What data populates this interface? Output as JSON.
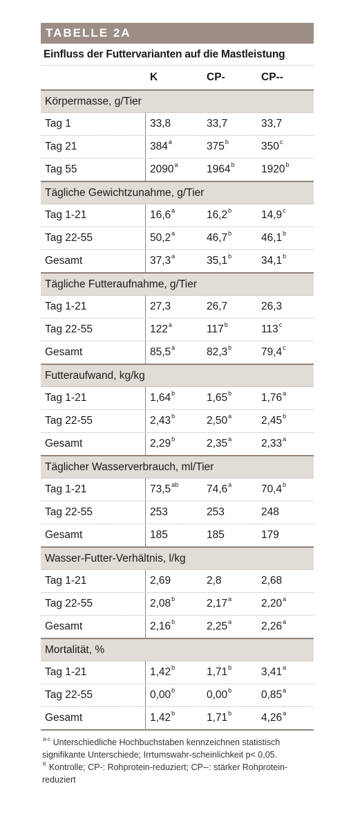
{
  "banner": "TABELLE 2A",
  "title": "Einfluss der Futtervarianten auf die Mastleistung",
  "columns": [
    "",
    "K",
    "CP-",
    "CP--"
  ],
  "sections": [
    {
      "label": "Körpermasse, g/Tier",
      "rows": [
        {
          "label": "Tag 1",
          "cells": [
            {
              "v": "33,8",
              "s": ""
            },
            {
              "v": "33,7",
              "s": ""
            },
            {
              "v": "33,7",
              "s": ""
            }
          ]
        },
        {
          "label": "Tag 21",
          "cells": [
            {
              "v": "384",
              "s": "a"
            },
            {
              "v": "375",
              "s": "b"
            },
            {
              "v": "350",
              "s": "c"
            }
          ]
        },
        {
          "label": "Tag 55",
          "cells": [
            {
              "v": "2090",
              "s": "a"
            },
            {
              "v": "1964",
              "s": "b"
            },
            {
              "v": "1920",
              "s": "b"
            }
          ]
        }
      ]
    },
    {
      "label": "Tägliche Gewichtzunahme, g/Tier",
      "rows": [
        {
          "label": "Tag 1-21",
          "cells": [
            {
              "v": "16,6",
              "s": "a"
            },
            {
              "v": "16,2",
              "s": "b"
            },
            {
              "v": "14,9",
              "s": "c"
            }
          ]
        },
        {
          "label": "Tag 22-55",
          "cells": [
            {
              "v": "50,2",
              "s": "a"
            },
            {
              "v": "46,7",
              "s": "b"
            },
            {
              "v": "46,1",
              "s": "b"
            }
          ]
        },
        {
          "label": "Gesamt",
          "cells": [
            {
              "v": "37,3",
              "s": "a"
            },
            {
              "v": "35,1",
              "s": "b"
            },
            {
              "v": "34,1",
              "s": "b"
            }
          ]
        }
      ]
    },
    {
      "label": "Tägliche Futteraufnahme, g/Tier",
      "rows": [
        {
          "label": "Tag 1-21",
          "cells": [
            {
              "v": "27,3",
              "s": ""
            },
            {
              "v": "26,7",
              "s": ""
            },
            {
              "v": "26,3",
              "s": ""
            }
          ]
        },
        {
          "label": "Tag 22-55",
          "cells": [
            {
              "v": "122",
              "s": "a"
            },
            {
              "v": "117",
              "s": "b"
            },
            {
              "v": "113",
              "s": "c"
            }
          ]
        },
        {
          "label": "Gesamt",
          "cells": [
            {
              "v": "85,5",
              "s": "a"
            },
            {
              "v": "82,3",
              "s": "b"
            },
            {
              "v": "79,4",
              "s": "c"
            }
          ]
        }
      ]
    },
    {
      "label": "Futteraufwand, kg/kg",
      "rows": [
        {
          "label": "Tag 1-21",
          "cells": [
            {
              "v": "1,64",
              "s": "b"
            },
            {
              "v": "1,65",
              "s": "b"
            },
            {
              "v": "1,76",
              "s": "a"
            }
          ]
        },
        {
          "label": "Tag 22-55",
          "cells": [
            {
              "v": "2,43",
              "s": "b"
            },
            {
              "v": "2,50",
              "s": "a"
            },
            {
              "v": "2,45",
              "s": "b"
            }
          ]
        },
        {
          "label": "Gesamt",
          "cells": [
            {
              "v": "2,29",
              "s": "b"
            },
            {
              "v": "2,35",
              "s": "a"
            },
            {
              "v": "2,33",
              "s": "a"
            }
          ]
        }
      ]
    },
    {
      "label": "Täglicher Wasserverbrauch, ml/Tier",
      "rows": [
        {
          "label": "Tag 1-21",
          "cells": [
            {
              "v": "73,5",
              "s": "ab"
            },
            {
              "v": "74,6",
              "s": "a"
            },
            {
              "v": "70,4",
              "s": "b"
            }
          ]
        },
        {
          "label": "Tag 22-55",
          "cells": [
            {
              "v": "253",
              "s": ""
            },
            {
              "v": "253",
              "s": ""
            },
            {
              "v": "248",
              "s": ""
            }
          ]
        },
        {
          "label": "Gesamt",
          "cells": [
            {
              "v": "185",
              "s": ""
            },
            {
              "v": "185",
              "s": ""
            },
            {
              "v": "179",
              "s": ""
            }
          ]
        }
      ]
    },
    {
      "label": "Wasser-Futter-Verhältnis, l/kg",
      "rows": [
        {
          "label": "Tag 1-21",
          "cells": [
            {
              "v": "2,69",
              "s": ""
            },
            {
              "v": "2,8",
              "s": ""
            },
            {
              "v": "2,68",
              "s": ""
            }
          ]
        },
        {
          "label": "Tag 22-55",
          "cells": [
            {
              "v": "2,08",
              "s": "b"
            },
            {
              "v": "2,17",
              "s": "a"
            },
            {
              "v": "2,20",
              "s": "a"
            }
          ]
        },
        {
          "label": "Gesamt",
          "cells": [
            {
              "v": "2,16",
              "s": "b"
            },
            {
              "v": "2,25",
              "s": "a"
            },
            {
              "v": "2,26",
              "s": "a"
            }
          ]
        }
      ]
    },
    {
      "label": "Mortalität, %",
      "rows": [
        {
          "label": "Tag 1-21",
          "cells": [
            {
              "v": "1,42",
              "s": "b"
            },
            {
              "v": "1,71",
              "s": "b"
            },
            {
              "v": "3,41",
              "s": "a"
            }
          ]
        },
        {
          "label": "Tag 22-55",
          "cells": [
            {
              "v": "0,00",
              "s": "b"
            },
            {
              "v": "0,00",
              "s": "b"
            },
            {
              "v": "0,85",
              "s": "a"
            }
          ]
        },
        {
          "label": "Gesamt",
          "cells": [
            {
              "v": "1,42",
              "s": "b"
            },
            {
              "v": "1,71",
              "s": "b"
            },
            {
              "v": "4,26",
              "s": "a"
            }
          ]
        }
      ]
    }
  ],
  "footnotes": [
    {
      "mark": "a-c",
      "text": " Unterschiedliche Hochbuchstaben kennzeichnen statistisch signifikante Unterschiede; Irrtumswahr-scheinlichkeit p< 0,05."
    },
    {
      "mark": "K",
      "text": " Kontrolle; CP-: Rohprotein-reduziert; CP--: stärker Rohprotein-reduziert"
    }
  ],
  "colors": {
    "banner": "#9c8e85",
    "section_bg": "#e2dcd6",
    "rule": "#8f837b"
  }
}
